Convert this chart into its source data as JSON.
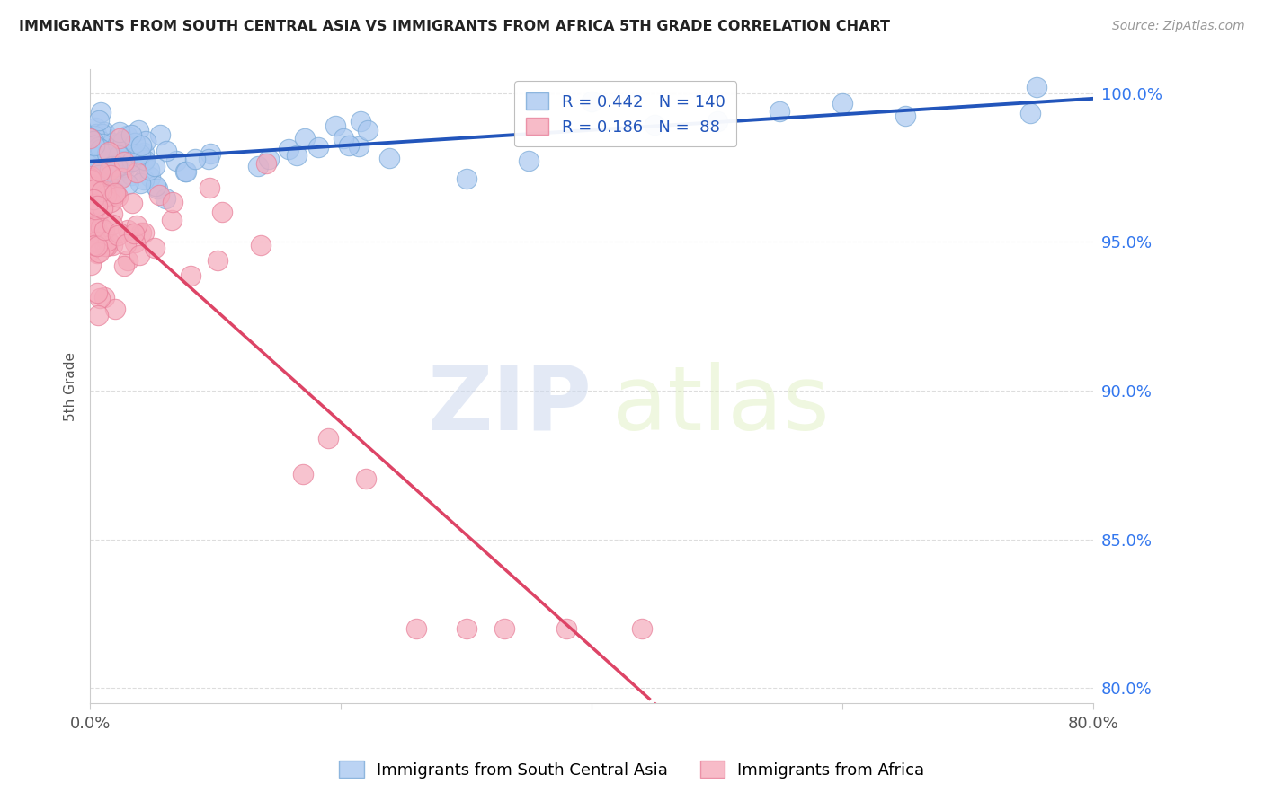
{
  "title": "IMMIGRANTS FROM SOUTH CENTRAL ASIA VS IMMIGRANTS FROM AFRICA 5TH GRADE CORRELATION CHART",
  "source": "Source: ZipAtlas.com",
  "ylabel": "5th Grade",
  "xlim": [
    0.0,
    0.8
  ],
  "ylim": [
    0.795,
    1.008
  ],
  "yticks": [
    0.8,
    0.85,
    0.9,
    0.95,
    1.0
  ],
  "yticklabels": [
    "80.0%",
    "85.0%",
    "90.0%",
    "95.0%",
    "100.0%"
  ],
  "r_blue": 0.442,
  "n_blue": 140,
  "r_pink": 0.186,
  "n_pink": 88,
  "blue_color": "#aac8f0",
  "pink_color": "#f5aabb",
  "blue_edge_color": "#7aaad8",
  "pink_edge_color": "#e8809a",
  "blue_line_color": "#2255bb",
  "pink_line_color": "#dd4466",
  "legend_label_blue": "Immigrants from South Central Asia",
  "legend_label_pink": "Immigrants from Africa",
  "watermark_zip": "ZIP",
  "watermark_atlas": "atlas",
  "grid_color": "#dddddd",
  "axis_color": "#cccccc"
}
